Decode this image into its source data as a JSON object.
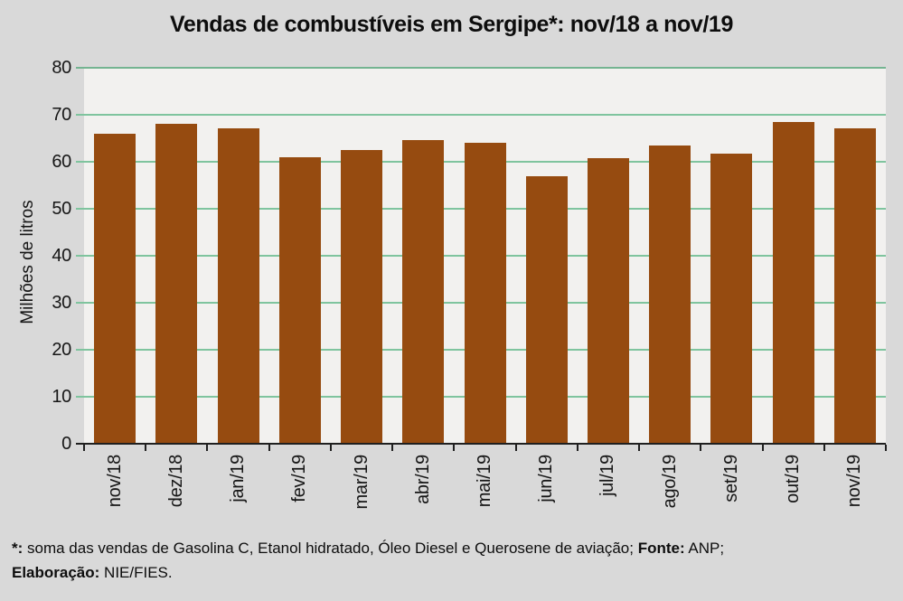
{
  "title": "Vendas de combustíveis em Sergipe*: nov/18 a nov/19",
  "chart_data": {
    "type": "bar",
    "categories": [
      "nov/18",
      "dez/18",
      "jan/19",
      "fev/19",
      "mar/19",
      "abr/19",
      "mai/19",
      "jun/19",
      "jul/19",
      "ago/19",
      "set/19",
      "out/19",
      "nov/19"
    ],
    "values": [
      66,
      68.1,
      67.1,
      60.9,
      62.5,
      64.7,
      64.1,
      57,
      60.7,
      63.4,
      61.8,
      68.4,
      67.1
    ],
    "title": "Vendas de combustíveis em Sergipe*: nov/18 a nov/19",
    "xlabel": "",
    "ylabel": "Milhões de litros",
    "ylim": [
      0,
      80
    ],
    "ytick_step": 10,
    "grid": true,
    "legend": "none",
    "colors": {
      "bar": "#964B10",
      "gridline": "#7FC49E",
      "top_border": "#74B491",
      "axis": "#1f1f1f",
      "plot_bg": "#F2F1EF",
      "page_bg": "#D9D9D9"
    }
  },
  "footer": {
    "lines": [
      {
        "segments": [
          {
            "text": "*:",
            "bold": true
          },
          {
            "text": " soma das vendas de Gasolina C, Etanol hidratado, Óleo Diesel e Querosene de aviação; ",
            "bold": false
          },
          {
            "text": "Fonte:",
            "bold": true
          },
          {
            "text": " ANP;",
            "bold": false
          }
        ]
      },
      {
        "segments": [
          {
            "text": "Elaboração:",
            "bold": true
          },
          {
            "text": " NIE/FIES.",
            "bold": false
          }
        ]
      }
    ]
  }
}
